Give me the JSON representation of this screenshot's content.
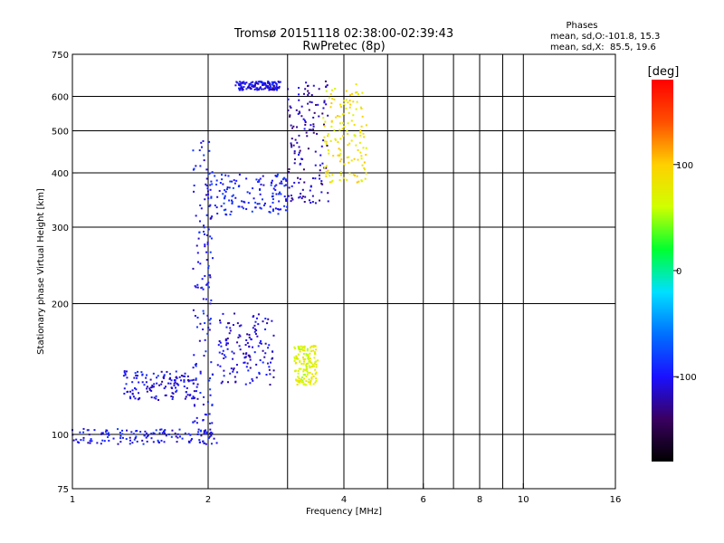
{
  "chart_data": {
    "type": "scatter",
    "title_line1": "Tromsø 20151118 02:38:00-02:39:43",
    "title_line2": "RwPretec (8p)",
    "phases_title": "Phases",
    "phases_line1": "mean, sd,O:-101.8, 15.3",
    "phases_line2": "mean, sd,X:  85.5, 19.6",
    "xlabel": "Frequency [MHz]",
    "ylabel": "Stationary phase Virtual Height [km]",
    "x_scale": "log2",
    "y_scale": "log",
    "xlim": [
      1,
      16
    ],
    "ylim": [
      75,
      750
    ],
    "x_ticks": [
      1,
      2,
      4,
      6,
      8,
      10,
      16
    ],
    "x_tick_labels": [
      "1",
      "2",
      "4",
      "6",
      "8",
      "10",
      "16"
    ],
    "x_gridlines": [
      2,
      3,
      4,
      5,
      6,
      7,
      8,
      9,
      10
    ],
    "y_ticks": [
      75,
      100,
      200,
      300,
      400,
      500,
      600,
      750
    ],
    "y_tick_labels": [
      "75",
      "100",
      "200",
      "300",
      "400",
      "500",
      "600",
      "750"
    ],
    "y_gridlines": [
      100,
      200,
      300,
      400,
      500,
      600
    ],
    "grid": true,
    "colorbar": {
      "label": "[deg]",
      "ticks": [
        100,
        0,
        -100
      ],
      "tick_labels": [
        "100",
        "0",
        "-100"
      ],
      "range": [
        -180,
        180
      ],
      "colors": [
        "#000000",
        "#3a0060",
        "#1a10ff",
        "#0070ff",
        "#00e0ff",
        "#00ff30",
        "#d0ff00",
        "#ffd000",
        "#ff5000",
        "#ff0000"
      ],
      "placement": "right"
    },
    "series": [
      {
        "comment_free": true,
        "freq_range": [
          1.0,
          2.1
        ],
        "height_range": [
          95,
          103
        ],
        "phase": -100
      },
      {
        "freq_range": [
          1.3,
          1.9
        ],
        "height_range": [
          120,
          140
        ],
        "phase": -105
      },
      {
        "freq_range": [
          1.85,
          2.05
        ],
        "height_range": [
          100,
          480
        ],
        "phase": -100
      },
      {
        "freq_range": [
          2.0,
          3.0
        ],
        "height_range": [
          320,
          400
        ],
        "phase": -95
      },
      {
        "freq_range": [
          2.3,
          2.9
        ],
        "height_range": [
          620,
          650
        ],
        "phase": -105
      },
      {
        "freq_range": [
          2.1,
          2.8
        ],
        "height_range": [
          130,
          190
        ],
        "phase": -110
      },
      {
        "freq_range": [
          3.0,
          3.7
        ],
        "height_range": [
          340,
          650
        ],
        "phase": -120
      },
      {
        "freq_range": [
          3.6,
          4.5
        ],
        "height_range": [
          380,
          640
        ],
        "phase": 85
      },
      {
        "freq_range": [
          3.1,
          3.5
        ],
        "height_range": [
          130,
          160
        ],
        "phase": 70
      }
    ]
  }
}
